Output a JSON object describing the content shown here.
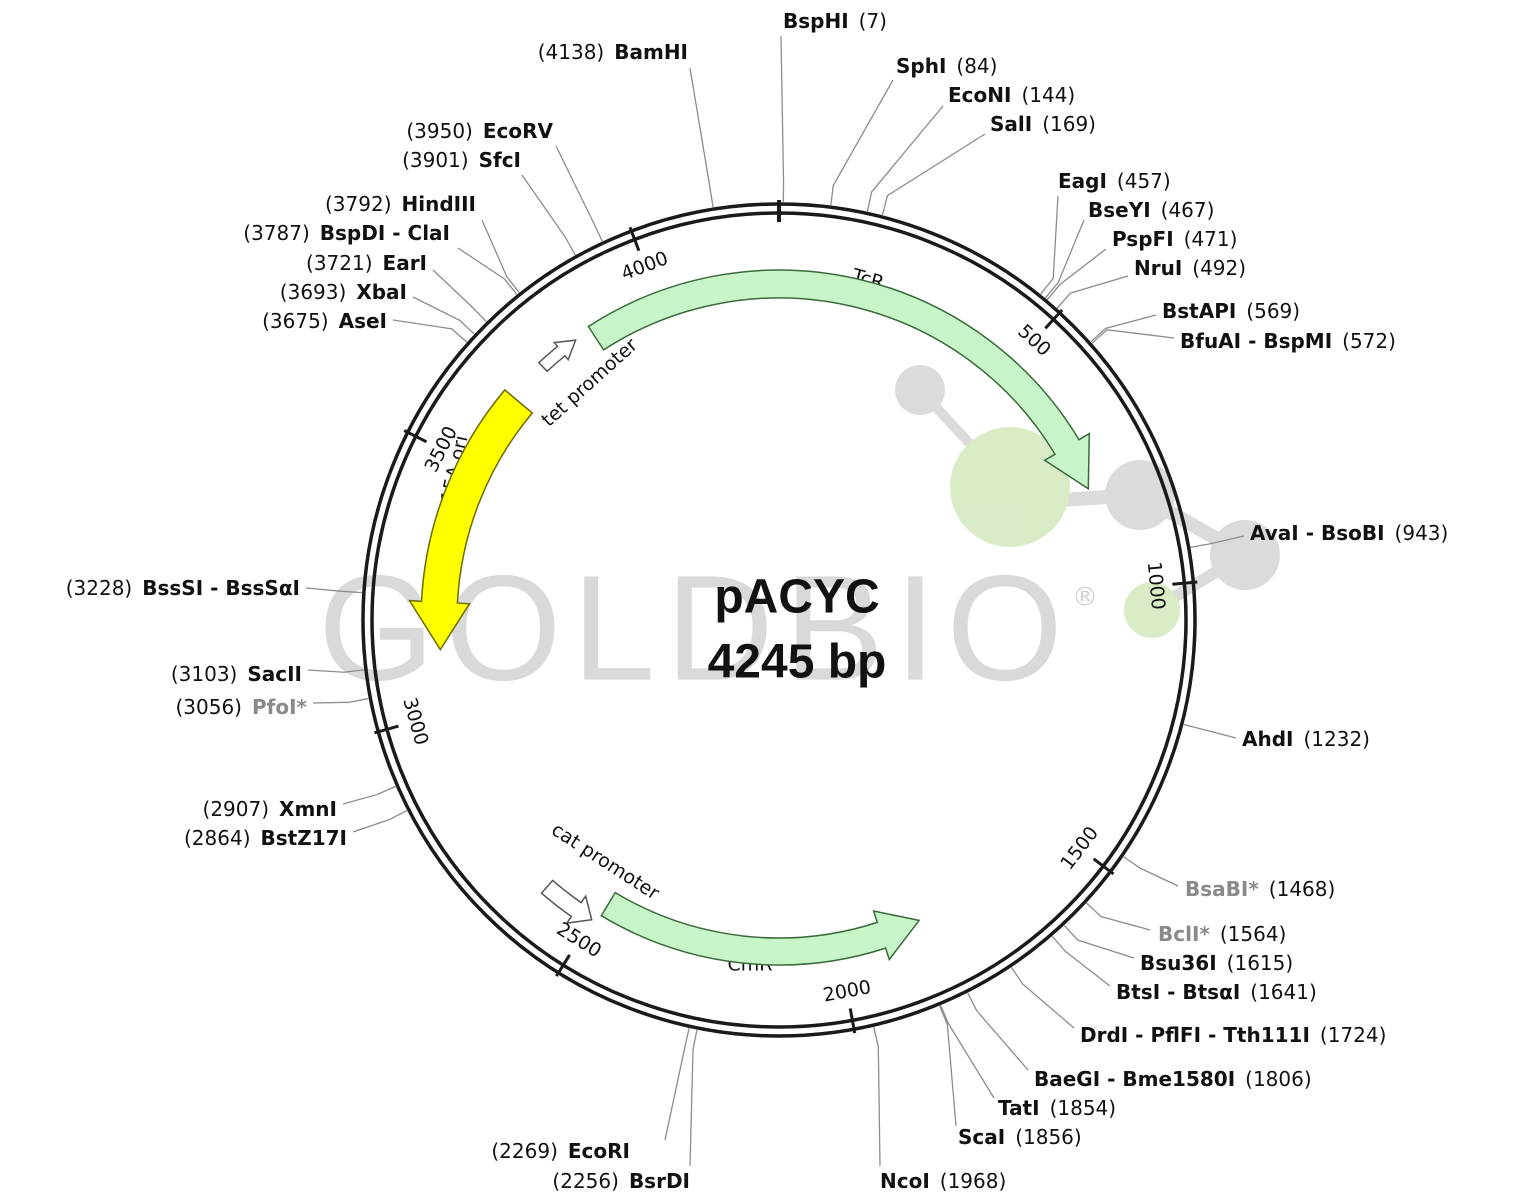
{
  "plasmid": {
    "name": "pACYC",
    "size": {
      "value": 4245,
      "label": "4245 bp"
    }
  },
  "watermark": {
    "text": "GOLDBIO",
    "mark": "®"
  },
  "ticks": [
    500,
    1000,
    1500,
    2000,
    2500,
    3000,
    3500,
    4000
  ],
  "features": [
    {
      "label": "TcR"
    },
    {
      "label": "CmR"
    },
    {
      "label": "p15A ori"
    },
    {
      "label": "tet promoter"
    },
    {
      "label": "cat promoter"
    }
  ],
  "sites": [
    {
      "name": "BspHI",
      "position": {
        "value": 7,
        "label": "(7)"
      }
    },
    {
      "name": "SphI",
      "position": {
        "value": 84,
        "label": "(84)"
      }
    },
    {
      "name": "EcoNI",
      "position": {
        "value": 144,
        "label": "(144)"
      }
    },
    {
      "name": "SalI",
      "position": {
        "value": 169,
        "label": "(169)"
      }
    },
    {
      "name": "EagI",
      "position": {
        "value": 457,
        "label": "(457)"
      }
    },
    {
      "name": "BseYI",
      "position": {
        "value": 467,
        "label": "(467)"
      }
    },
    {
      "name": "PspFI",
      "position": {
        "value": 471,
        "label": "(471)"
      }
    },
    {
      "name": "NruI",
      "position": {
        "value": 492,
        "label": "(492)"
      }
    },
    {
      "name": "BstAPI",
      "position": {
        "value": 569,
        "label": "(569)"
      }
    },
    {
      "name": "BfuAI - BspMI",
      "position": {
        "value": 572,
        "label": "(572)"
      }
    },
    {
      "name": "AvaI - BsoBI",
      "position": {
        "value": 943,
        "label": "(943)"
      }
    },
    {
      "name": "AhdI",
      "position": {
        "value": 1232,
        "label": "(1232)"
      }
    },
    {
      "name": "BsaBI*",
      "position": {
        "value": 1468,
        "label": "(1468)"
      },
      "color": "#8a8a8a"
    },
    {
      "name": "BclI*",
      "position": {
        "value": 1564,
        "label": "(1564)"
      },
      "color": "#8a8a8a"
    },
    {
      "name": "Bsu36I",
      "position": {
        "value": 1615,
        "label": "(1615)"
      }
    },
    {
      "name": "BtsI - BtsαI",
      "position": {
        "value": 1641,
        "label": "(1641)"
      }
    },
    {
      "name": "DrdI - PflFI - Tth111I",
      "position": {
        "value": 1724,
        "label": "(1724)"
      }
    },
    {
      "name": "BaeGI - Bme1580I",
      "position": {
        "value": 1806,
        "label": "(1806)"
      }
    },
    {
      "name": "TatI",
      "position": {
        "value": 1854,
        "label": "(1854)"
      }
    },
    {
      "name": "ScaI",
      "position": {
        "value": 1856,
        "label": "(1856)"
      }
    },
    {
      "name": "NcoI",
      "position": {
        "value": 1968,
        "label": "(1968)"
      }
    },
    {
      "name": "EcoRI",
      "position": {
        "value": 2269,
        "label": "(2269)"
      }
    },
    {
      "name": "BsrDI",
      "position": {
        "value": 2256,
        "label": "(2256)"
      }
    },
    {
      "name": "XmnI",
      "position": {
        "value": 2907,
        "label": "(2907)"
      }
    },
    {
      "name": "BstZ17I",
      "position": {
        "value": 2864,
        "label": "(2864)"
      }
    },
    {
      "name": "PfoI*",
      "position": {
        "value": 3056,
        "label": "(3056)"
      },
      "color": "#8a8a8a"
    },
    {
      "name": "SacII",
      "position": {
        "value": 3103,
        "label": "(3103)"
      }
    },
    {
      "name": "BssSI - BssSαI",
      "position": {
        "value": 3228,
        "label": "(3228)"
      }
    },
    {
      "name": "AseI",
      "position": {
        "value": 3675,
        "label": "(3675)"
      }
    },
    {
      "name": "XbaI",
      "position": {
        "value": 3693,
        "label": "(3693)"
      }
    },
    {
      "name": "EarI",
      "position": {
        "value": 3721,
        "label": "(3721)"
      }
    },
    {
      "name": "BspDI - ClaI",
      "position": {
        "value": 3787,
        "label": "(3787)"
      }
    },
    {
      "name": "HindIII",
      "position": {
        "value": 3792,
        "label": "(3792)"
      }
    },
    {
      "name": "SfcI",
      "position": {
        "value": 3901,
        "label": "(3901)"
      }
    },
    {
      "name": "EcoRV",
      "position": {
        "value": 3950,
        "label": "(3950)"
      }
    },
    {
      "name": "BamHI",
      "position": {
        "value": 4138,
        "label": "(4138)"
      }
    }
  ]
}
